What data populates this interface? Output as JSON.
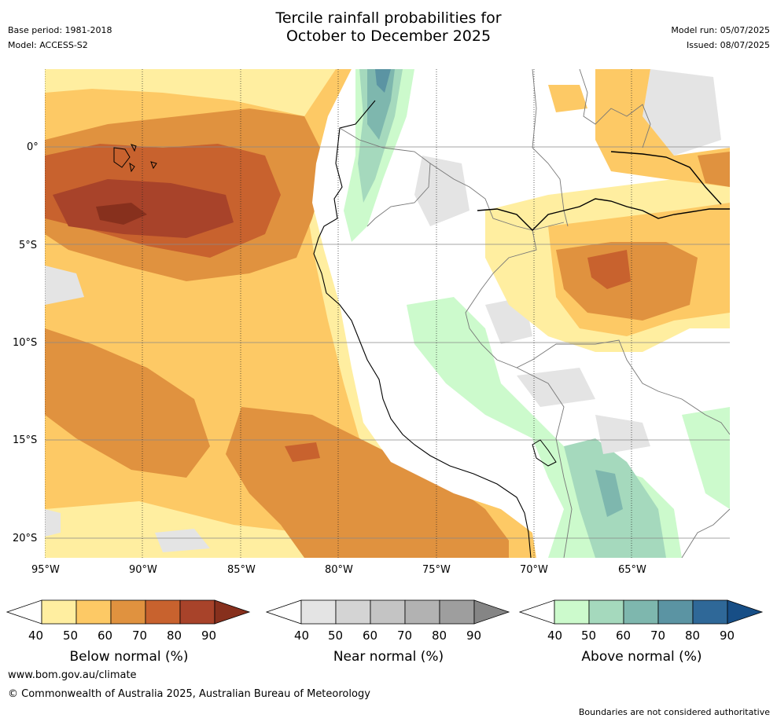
{
  "header": {
    "title_line1": "Tercile rainfall probabilities for",
    "title_line2": "October to December 2025",
    "base_period": "Base period: 1981-2018",
    "model": "Model: ACCESS-S2",
    "model_run": "Model run: 05/07/2025",
    "issued": "Issued: 08/07/2025"
  },
  "axes": {
    "lat_labels": [
      "0°",
      "5°S",
      "10°S",
      "15°S",
      "20°S"
    ],
    "lon_labels": [
      "95°W",
      "90°W",
      "85°W",
      "80°W",
      "75°W",
      "70°W",
      "65°W"
    ]
  },
  "colorbars": [
    {
      "label": "Below normal (%)",
      "ticks": [
        "40",
        "50",
        "60",
        "70",
        "80",
        "90"
      ],
      "colors": [
        "#ffffff",
        "#ffeea0",
        "#fdc965",
        "#e0923f",
        "#c8622e",
        "#a8432a",
        "#87301d"
      ]
    },
    {
      "label": "Near normal (%)",
      "ticks": [
        "40",
        "50",
        "60",
        "70",
        "80",
        "90"
      ],
      "colors": [
        "#ffffff",
        "#e4e4e4",
        "#d4d4d4",
        "#c4c4c4",
        "#b2b2b2",
        "#9e9e9e",
        "#858585"
      ]
    },
    {
      "label": "Above normal (%)",
      "ticks": [
        "40",
        "50",
        "60",
        "70",
        "80",
        "90"
      ],
      "colors": [
        "#ffffff",
        "#ccfacc",
        "#a5d9bd",
        "#7eb7ae",
        "#5b94a3",
        "#2f6898",
        "#174e86"
      ]
    }
  ],
  "footer": {
    "url": "www.bom.gov.au/climate",
    "copyright": "© Commonwealth of Australia 2025, Australian Bureau of Meteorology",
    "disclaimer": "Boundaries are not considered authoritative"
  }
}
